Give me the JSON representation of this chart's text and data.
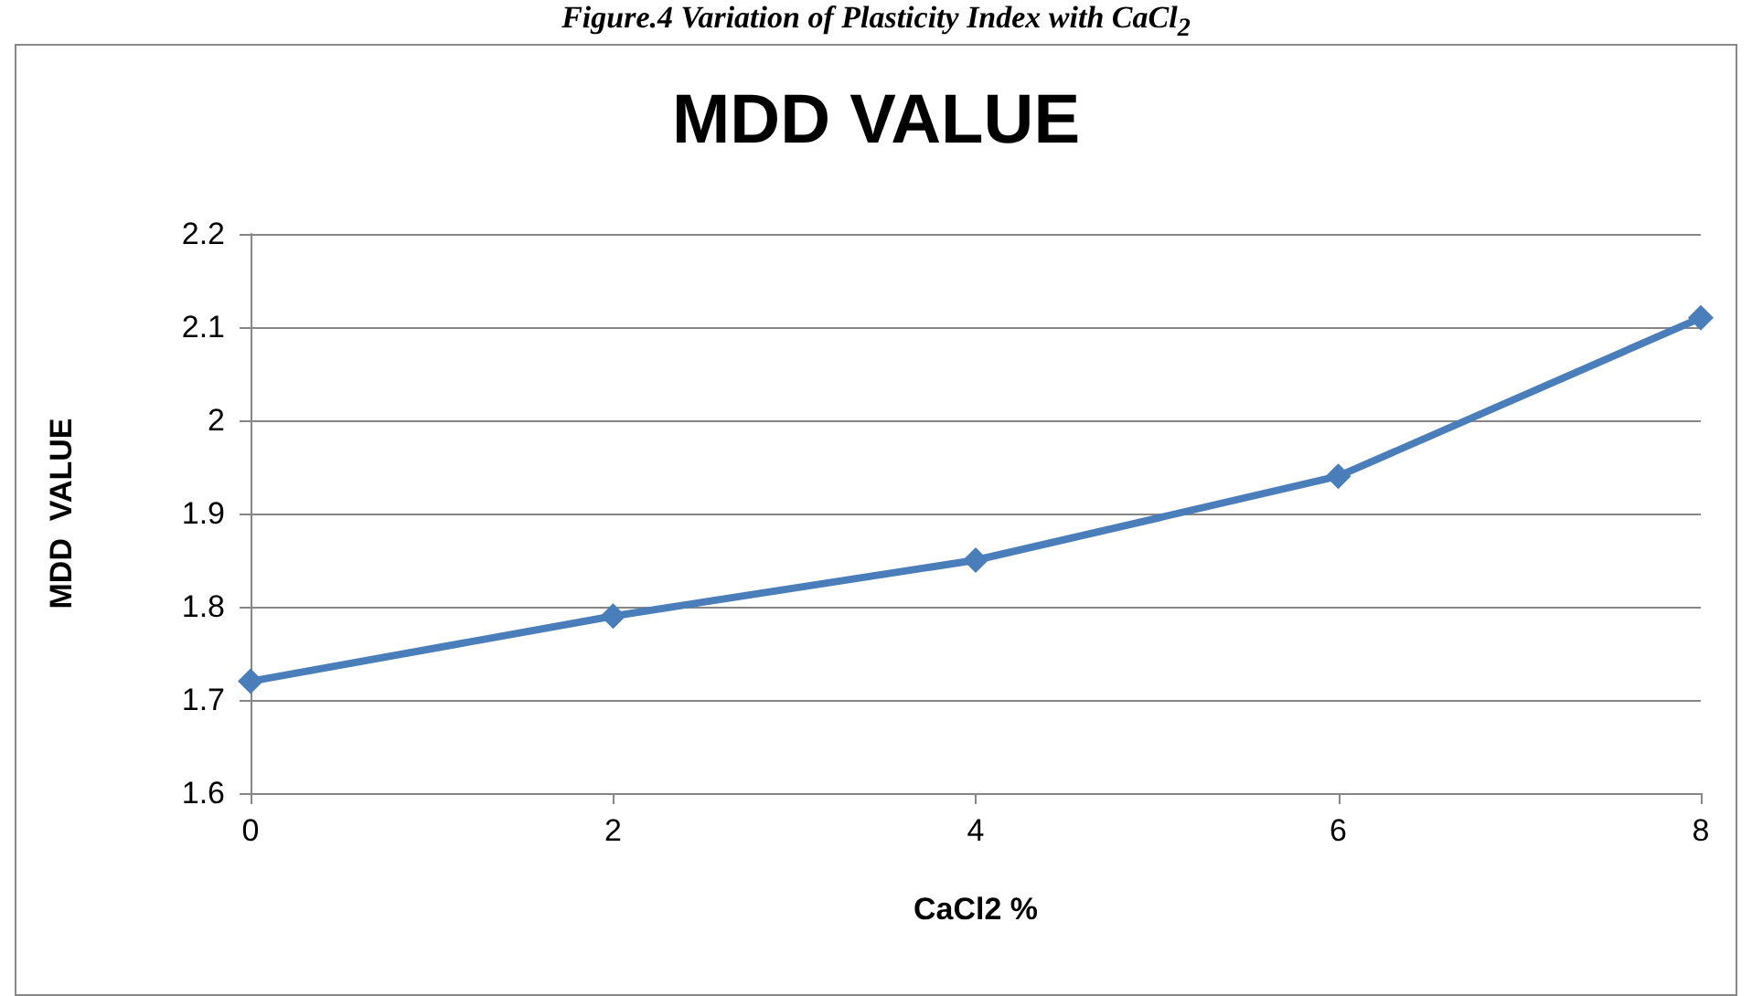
{
  "chart_data": {
    "type": "line",
    "title": "MDD VALUE",
    "xlabel": "CaCl2 %",
    "ylabel": "MDD  VALUE",
    "annotations": [
      "Figure.4 Variation of Plasticity Index with CaCl$_{2}$"
    ],
    "x": [
      0,
      2,
      4,
      6,
      8
    ],
    "series": [
      {
        "color": "#4a7ebb",
        "values": [
          1.72,
          1.79,
          1.85,
          1.94,
          2.11
        ]
      }
    ],
    "xlim": [
      0,
      8
    ],
    "xticks": [
      0,
      2,
      4,
      6,
      8
    ],
    "ylim": [
      1.6,
      2.2
    ],
    "yticks": [
      1.6,
      1.7,
      1.8,
      1.9,
      2,
      2.1,
      2.2
    ],
    "grid": "y",
    "marker": "diamond",
    "line_style": "solid"
  }
}
